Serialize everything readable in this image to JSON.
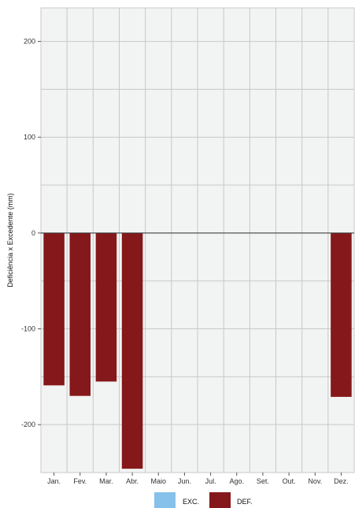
{
  "chart_data": {
    "type": "bar",
    "ylabel": "Deficiência x Excedente (mm)",
    "ylim": [
      -250,
      235
    ],
    "yticks": [
      200,
      100,
      0,
      -100,
      -200
    ],
    "categories": [
      "Jan.",
      "Fev.",
      "Mar.",
      "Abr.",
      "Maio",
      "Jun.",
      "Jul.",
      "Ago.",
      "Set.",
      "Out.",
      "Nov.",
      "Dez."
    ],
    "series": [
      {
        "name": "EXC.",
        "color": "#85c1e9",
        "values": [
          0,
          0,
          0,
          0,
          0,
          0,
          0,
          0,
          0,
          0,
          0,
          0
        ]
      },
      {
        "name": "DEF.",
        "color": "#85181b",
        "values": [
          -159,
          -170,
          -155,
          -246,
          0,
          0,
          0,
          0,
          0,
          0,
          0,
          -171
        ]
      }
    ],
    "grid": true,
    "legend": "bottom"
  }
}
